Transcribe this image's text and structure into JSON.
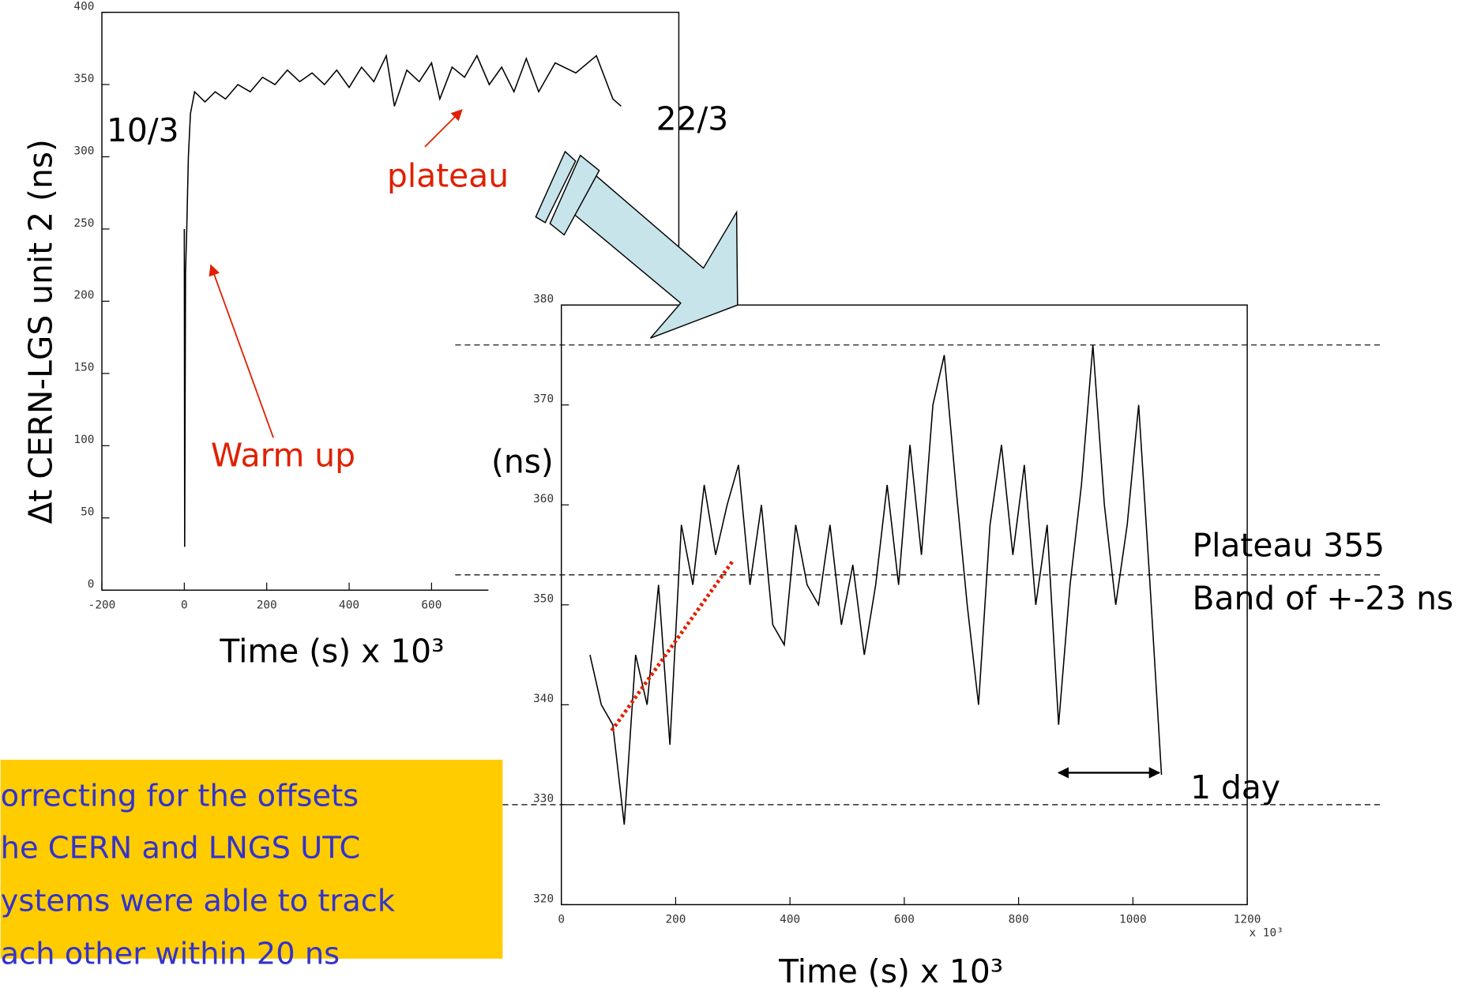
{
  "chart_data": [
    {
      "type": "line",
      "y_label": "Δt   CERN-LGS unit 2 (ns)",
      "x_label": "Time (s) x 10³",
      "xlim": [
        -200,
        1200
      ],
      "ylim": [
        0,
        400
      ],
      "xticks": [
        -200,
        0,
        200,
        400,
        600
      ],
      "yticks": [
        0,
        50,
        100,
        150,
        200,
        250,
        300,
        350,
        400
      ],
      "x": [
        0,
        1,
        3,
        6,
        10,
        15,
        25,
        50,
        75,
        100,
        130,
        160,
        190,
        220,
        250,
        280,
        310,
        340,
        370,
        400,
        430,
        460,
        490,
        510,
        540,
        570,
        600,
        620,
        650,
        680,
        710,
        740,
        770,
        800,
        830,
        860,
        900,
        950,
        1000,
        1040,
        1060
      ],
      "values": [
        250,
        30,
        220,
        250,
        300,
        330,
        345,
        338,
        345,
        340,
        350,
        345,
        355,
        350,
        360,
        352,
        358,
        350,
        360,
        348,
        362,
        352,
        370,
        335,
        360,
        352,
        365,
        340,
        362,
        355,
        370,
        350,
        362,
        345,
        368,
        345,
        365,
        358,
        370,
        340,
        335
      ],
      "color": "#000000",
      "annotations": [
        "10/3",
        "22/3",
        "plateau",
        "Warm up"
      ]
    },
    {
      "type": "line",
      "y_label": "(ns)",
      "x_label": "Time (s) x 10³",
      "x_multiplier": "x 10³",
      "xlim": [
        0,
        1200
      ],
      "ylim": [
        320,
        380
      ],
      "xticks": [
        0,
        200,
        400,
        600,
        800,
        1000,
        1200
      ],
      "yticks": [
        320,
        330,
        340,
        350,
        360,
        370,
        380
      ],
      "x": [
        50,
        70,
        90,
        110,
        130,
        150,
        170,
        190,
        210,
        230,
        250,
        270,
        290,
        310,
        330,
        350,
        370,
        390,
        410,
        430,
        450,
        470,
        490,
        510,
        530,
        550,
        570,
        590,
        610,
        630,
        650,
        670,
        690,
        710,
        730,
        750,
        770,
        790,
        810,
        830,
        850,
        870,
        890,
        910,
        930,
        950,
        970,
        990,
        1010,
        1030,
        1050
      ],
      "values": [
        345,
        340,
        338,
        328,
        345,
        340,
        352,
        336,
        358,
        352,
        362,
        355,
        360,
        364,
        352,
        360,
        348,
        346,
        358,
        352,
        350,
        358,
        348,
        354,
        345,
        352,
        362,
        352,
        366,
        355,
        370,
        375,
        362,
        350,
        340,
        358,
        366,
        355,
        364,
        350,
        358,
        338,
        352,
        362,
        376,
        360,
        350,
        358,
        370,
        352,
        333
      ],
      "color": "#000000",
      "reference_lines": [
        376,
        353,
        330
      ],
      "trend": {
        "x": [
          88,
          300
        ],
        "values": [
          337.4,
          354.4
        ],
        "color": "#e02000"
      },
      "span": {
        "x": [
          870,
          1046
        ],
        "value": 333.2,
        "label": "1 day"
      },
      "annotations": [
        "Plateau 355",
        "Band of +-23 ns"
      ]
    }
  ],
  "note": {
    "lines": [
      "orrecting for the offsets",
      "he CERN and LNGS UTC",
      "ystems were able to track",
      "ach other within 20 ns"
    ]
  }
}
